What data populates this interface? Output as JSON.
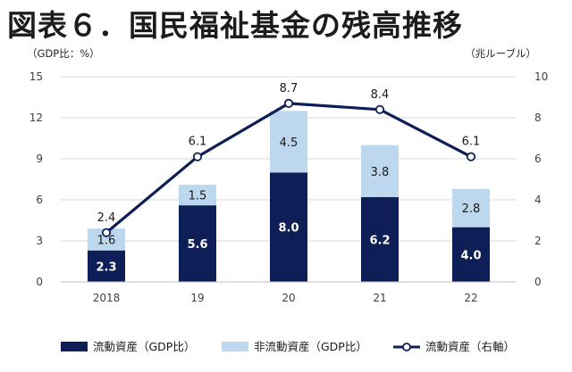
{
  "title": "図表６．国民福祉基金の残高推移",
  "chart_data": {
    "type": "bar+line",
    "title": "図表６．国民福祉基金の残高推移",
    "categories": [
      "2018",
      "19",
      "20",
      "21",
      "22"
    ],
    "left_axis": {
      "label": "（GDP比：%）",
      "min": 0,
      "max": 15,
      "ticks": [
        0,
        3,
        6,
        9,
        12,
        15
      ]
    },
    "right_axis": {
      "label": "（兆ルーブル）",
      "min": 0,
      "max": 10,
      "ticks": [
        0,
        2,
        4,
        6,
        8,
        10
      ]
    },
    "series": [
      {
        "name": "流動資産（GDP比）",
        "kind": "stacked-bar",
        "axis": "left",
        "color": "#0d1f56",
        "values": [
          2.3,
          5.6,
          8.0,
          6.2,
          4.0
        ],
        "labels": [
          "2.3",
          "5.6",
          "8.0",
          "6.2",
          "4.0"
        ]
      },
      {
        "name": "非流動資産（GDP比）",
        "kind": "stacked-bar",
        "axis": "left",
        "color": "#bdd7ee",
        "values": [
          1.6,
          1.5,
          4.5,
          3.8,
          2.8
        ],
        "labels": [
          "1.6",
          "1.5",
          "4.5",
          "3.8",
          "2.8"
        ]
      },
      {
        "name": "流動資産（右軸）",
        "kind": "line",
        "axis": "right",
        "color": "#0d1f56",
        "values": [
          2.4,
          6.1,
          8.7,
          8.4,
          6.1
        ],
        "labels": [
          "2.4",
          "6.1",
          "8.7",
          "8.4",
          "6.1"
        ]
      }
    ],
    "grid": true,
    "legend_position": "bottom"
  }
}
